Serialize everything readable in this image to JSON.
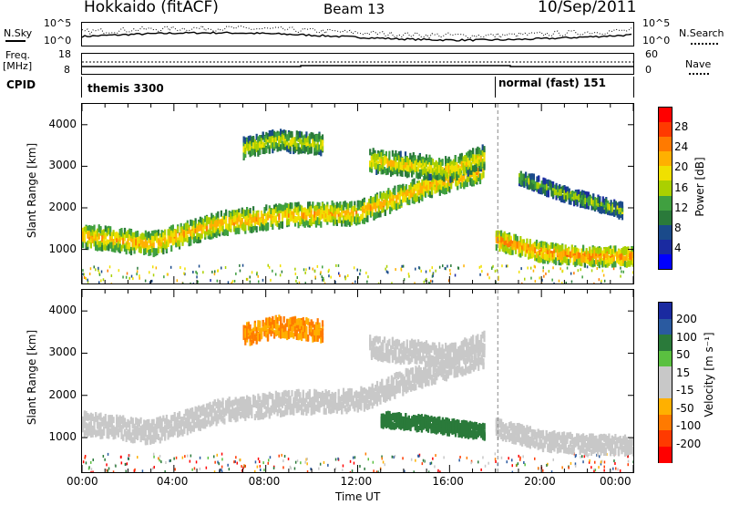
{
  "header": {
    "station": "Hokkaido (fitACF)",
    "beam": "Beam 13",
    "date": "10/Sep/2011"
  },
  "top_panels": {
    "nsky_label": "N.Sky",
    "nsearch_label": "N.Search",
    "noise_top_tick": "10^5",
    "noise_bottom_tick": "10^0",
    "freq_label": "Freq.",
    "freq_unit": "[MHz]",
    "freq_ticks": [
      "18",
      "8"
    ],
    "nave_label": "Nave",
    "nave_ticks": [
      "60",
      "0"
    ],
    "cpid_label": "CPID",
    "cpid_modes": [
      {
        "name": "themis 3300",
        "start_hour": 0
      },
      {
        "name": "normal (fast) 151",
        "start_hour": 18.1
      }
    ]
  },
  "chart_data": [
    {
      "type": "heatmap",
      "title": "",
      "ylabel": "Slant Range [km]",
      "xlabel": "",
      "x_range_hours": [
        0,
        24
      ],
      "ylim": [
        180,
        4500
      ],
      "yticks": [
        1000,
        2000,
        3000,
        4000
      ],
      "colorbar": {
        "label": "Power [dB]",
        "ticks": [
          "28",
          "24",
          "20",
          "16",
          "12",
          "8",
          "4"
        ],
        "colors": [
          "#ff0000",
          "#ff3a00",
          "#ff7a00",
          "#ffb000",
          "#f0e000",
          "#aad000",
          "#40a040",
          "#2a7a3a",
          "#1a4a8a",
          "#1a2aa0",
          "#0000ff"
        ]
      },
      "bands": [
        {
          "t": [
            0,
            3,
            6,
            9,
            12,
            15,
            17.5
          ],
          "center_km": [
            1400,
            1200,
            1700,
            1900,
            1950,
            2600,
            3000
          ],
          "width_km": 500,
          "db": 22
        },
        {
          "t": [
            18,
            20,
            22,
            24
          ],
          "center_km": [
            1300,
            1000,
            900,
            900
          ],
          "width_km": 400,
          "db": 24
        },
        {
          "t": [
            7,
            8.5,
            10.5
          ],
          "center_km": [
            3500,
            3700,
            3600
          ],
          "width_km": 450,
          "db": 18
        },
        {
          "t": [
            12.5,
            16,
            17.5
          ],
          "center_km": [
            3200,
            3000,
            3300
          ],
          "width_km": 500,
          "db": 20
        },
        {
          "t": [
            19,
            21,
            23.5
          ],
          "center_km": [
            2800,
            2400,
            2000
          ],
          "width_km": 300,
          "db": 16
        }
      ]
    },
    {
      "type": "heatmap",
      "title": "",
      "ylabel": "Slant Range [km]",
      "xlabel": "Time UT",
      "x_range_hours": [
        0,
        24
      ],
      "ylim": [
        180,
        4500
      ],
      "yticks": [
        1000,
        2000,
        3000,
        4000
      ],
      "xticks": [
        "00:00",
        "04:00",
        "08:00",
        "12:00",
        "16:00",
        "20:00",
        "00:00"
      ],
      "colorbar": {
        "label": "Velocity [m s⁻¹]",
        "ticks": [
          "200",
          "100",
          "50",
          "15",
          "-15",
          "-50",
          "-100",
          "-200"
        ],
        "colors": [
          "#1a2aa0",
          "#2a5aa0",
          "#2a7a3a",
          "#5ac040",
          "#c8c8c8",
          "#c8c8c8",
          "#ffb000",
          "#ff7a00",
          "#ff3a00",
          "#ff0000"
        ]
      },
      "bands": [
        {
          "t": [
            0,
            3,
            6,
            9,
            12,
            15,
            17.5
          ],
          "center_km": [
            1400,
            1200,
            1700,
            1900,
            1950,
            2600,
            3000
          ],
          "width_km": 500,
          "vel": 0
        },
        {
          "t": [
            18,
            20,
            22,
            24
          ],
          "center_km": [
            1300,
            1000,
            900,
            900
          ],
          "width_km": 400,
          "vel": 0
        },
        {
          "t": [
            13,
            15,
            17.5
          ],
          "center_km": [
            1500,
            1400,
            1200
          ],
          "width_km": 300,
          "vel": 60
        },
        {
          "t": [
            7,
            8.5,
            10.5
          ],
          "center_km": [
            3500,
            3700,
            3600
          ],
          "width_km": 450,
          "vel": -30
        },
        {
          "t": [
            12.5,
            16,
            17.5
          ],
          "center_km": [
            3200,
            3000,
            3300
          ],
          "width_km": 500,
          "vel": 0
        }
      ]
    }
  ]
}
